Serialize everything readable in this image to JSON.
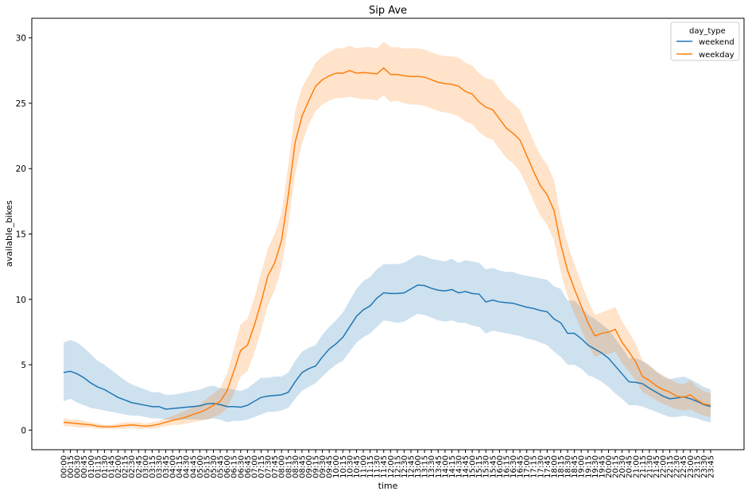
{
  "chart_data": {
    "type": "line",
    "title": "Sip Ave",
    "xlabel": "time",
    "ylabel": "available_bikes",
    "ylim": [
      -1.5,
      31.5
    ],
    "yticks": [
      0,
      5,
      10,
      15,
      20,
      25,
      30
    ],
    "grid": false,
    "legend": {
      "title": "day_type",
      "placement": "top-right"
    },
    "x": [
      "00:00",
      "00:15",
      "00:30",
      "00:45",
      "01:00",
      "01:15",
      "01:30",
      "01:45",
      "02:00",
      "02:15",
      "02:30",
      "02:45",
      "03:00",
      "03:15",
      "03:30",
      "03:45",
      "04:00",
      "04:15",
      "04:30",
      "04:45",
      "05:00",
      "05:15",
      "05:30",
      "05:45",
      "06:00",
      "06:15",
      "06:30",
      "06:45",
      "07:00",
      "07:15",
      "07:30",
      "07:45",
      "08:00",
      "08:15",
      "08:30",
      "08:45",
      "09:00",
      "09:15",
      "09:30",
      "09:45",
      "10:00",
      "10:15",
      "10:30",
      "10:45",
      "11:00",
      "11:15",
      "11:30",
      "11:45",
      "12:00",
      "12:15",
      "12:30",
      "12:45",
      "13:00",
      "13:15",
      "13:30",
      "13:45",
      "14:00",
      "14:15",
      "14:30",
      "14:45",
      "15:00",
      "15:15",
      "15:30",
      "15:45",
      "16:00",
      "16:15",
      "16:30",
      "16:45",
      "17:00",
      "17:15",
      "17:30",
      "17:45",
      "18:00",
      "18:15",
      "18:30",
      "18:45",
      "19:00",
      "19:15",
      "19:30",
      "19:45",
      "20:00",
      "20:15",
      "20:30",
      "20:45",
      "21:00",
      "21:15",
      "21:30",
      "21:45",
      "22:00",
      "22:15",
      "22:30",
      "22:45",
      "23:00",
      "23:15",
      "23:30",
      "23:45"
    ],
    "series": [
      {
        "name": "weekend",
        "color": "#1f77b4",
        "values": [
          4.4,
          4.5,
          4.3,
          4.0,
          3.6,
          3.3,
          3.1,
          2.8,
          2.5,
          2.3,
          2.1,
          2.0,
          1.9,
          1.8,
          1.8,
          1.6,
          1.65,
          1.7,
          1.75,
          1.8,
          1.85,
          2.0,
          2.05,
          1.95,
          1.8,
          1.8,
          1.75,
          1.9,
          2.2,
          2.5,
          2.6,
          2.65,
          2.7,
          2.9,
          3.7,
          4.4,
          4.7,
          4.9,
          5.6,
          6.2,
          6.6,
          7.1,
          7.9,
          8.7,
          9.2,
          9.5,
          10.1,
          10.5,
          10.45,
          10.45,
          10.5,
          10.8,
          11.1,
          11.05,
          10.85,
          10.7,
          10.65,
          10.75,
          10.5,
          10.6,
          10.45,
          10.4,
          9.8,
          9.95,
          9.8,
          9.75,
          9.7,
          9.55,
          9.4,
          9.3,
          9.15,
          9.05,
          8.5,
          8.2,
          7.4,
          7.4,
          7.0,
          6.5,
          6.2,
          5.9,
          5.5,
          4.9,
          4.3,
          3.7,
          3.65,
          3.55,
          3.2,
          2.9,
          2.6,
          2.4,
          2.45,
          2.55,
          2.4,
          2.2,
          1.95,
          1.8
        ],
        "ci_lower": [
          2.2,
          2.4,
          2.1,
          1.9,
          1.7,
          1.6,
          1.5,
          1.4,
          1.3,
          1.2,
          1.1,
          1.1,
          1.0,
          0.9,
          0.9,
          0.8,
          0.8,
          0.8,
          0.8,
          0.8,
          0.8,
          0.8,
          0.9,
          0.8,
          0.6,
          0.7,
          0.7,
          0.8,
          1.0,
          1.2,
          1.4,
          1.4,
          1.5,
          1.7,
          2.4,
          3.0,
          3.3,
          3.6,
          4.1,
          4.6,
          5.0,
          5.3,
          6.0,
          6.7,
          7.1,
          7.4,
          7.9,
          8.4,
          8.3,
          8.2,
          8.3,
          8.6,
          8.9,
          8.8,
          8.6,
          8.4,
          8.3,
          8.4,
          8.2,
          8.2,
          8.0,
          7.9,
          7.4,
          7.6,
          7.5,
          7.4,
          7.3,
          7.2,
          7.0,
          6.9,
          6.7,
          6.5,
          6.0,
          5.6,
          5.0,
          5.0,
          4.7,
          4.2,
          4.0,
          3.7,
          3.3,
          2.8,
          2.4,
          1.9,
          1.9,
          1.8,
          1.6,
          1.4,
          1.2,
          1.0,
          1.0,
          1.1,
          1.0,
          0.9,
          0.7,
          0.6
        ],
        "ci_upper": [
          6.7,
          6.9,
          6.7,
          6.3,
          5.8,
          5.3,
          5.0,
          4.6,
          4.2,
          3.8,
          3.5,
          3.3,
          3.1,
          2.9,
          2.9,
          2.7,
          2.7,
          2.8,
          2.9,
          3.0,
          3.1,
          3.3,
          3.4,
          3.2,
          3.2,
          3.1,
          3.0,
          3.2,
          3.6,
          4.0,
          4.0,
          4.1,
          4.1,
          4.4,
          5.3,
          6.0,
          6.3,
          6.5,
          7.3,
          7.9,
          8.4,
          9.0,
          9.9,
          10.8,
          11.4,
          11.7,
          12.3,
          12.7,
          12.7,
          12.7,
          12.8,
          13.1,
          13.4,
          13.3,
          13.1,
          13.0,
          12.9,
          13.1,
          12.8,
          13.0,
          12.9,
          12.8,
          12.3,
          12.4,
          12.2,
          12.1,
          12.1,
          11.9,
          11.8,
          11.7,
          11.6,
          11.5,
          11.0,
          10.8,
          9.9,
          9.9,
          9.4,
          8.8,
          8.5,
          8.1,
          7.7,
          7.0,
          6.3,
          5.5,
          5.5,
          5.3,
          4.9,
          4.5,
          4.1,
          3.9,
          4.0,
          4.1,
          3.9,
          3.6,
          3.3,
          3.1
        ]
      },
      {
        "name": "weekday",
        "color": "#ff7f0e",
        "values": [
          0.6,
          0.55,
          0.5,
          0.45,
          0.4,
          0.3,
          0.25,
          0.25,
          0.3,
          0.35,
          0.4,
          0.35,
          0.3,
          0.35,
          0.45,
          0.6,
          0.75,
          0.85,
          1.0,
          1.2,
          1.35,
          1.6,
          1.9,
          2.2,
          3.0,
          4.5,
          6.1,
          6.5,
          8.0,
          9.8,
          11.8,
          12.8,
          14.5,
          18.0,
          22.0,
          24.0,
          25.2,
          26.3,
          26.8,
          27.1,
          27.3,
          27.3,
          27.5,
          27.3,
          27.35,
          27.3,
          27.25,
          27.7,
          27.2,
          27.2,
          27.1,
          27.05,
          27.05,
          27.0,
          26.8,
          26.6,
          26.5,
          26.45,
          26.3,
          25.9,
          25.7,
          25.1,
          24.7,
          24.5,
          23.8,
          23.1,
          22.7,
          22.2,
          21.0,
          19.8,
          18.7,
          18.0,
          16.8,
          14.2,
          12.2,
          10.8,
          9.5,
          8.2,
          7.2,
          7.4,
          7.5,
          7.7,
          6.7,
          6.0,
          5.2,
          4.1,
          3.8,
          3.4,
          3.1,
          2.9,
          2.6,
          2.5,
          2.7,
          2.3,
          2.0,
          1.9
        ],
        "ci_lower": [
          0.3,
          0.3,
          0.2,
          0.2,
          0.2,
          0.1,
          0.1,
          0.1,
          0.1,
          0.1,
          0.2,
          0.1,
          0.1,
          0.1,
          0.2,
          0.3,
          0.4,
          0.4,
          0.5,
          0.6,
          0.7,
          0.8,
          1.0,
          1.2,
          1.7,
          2.8,
          4.1,
          4.5,
          5.9,
          7.6,
          9.6,
          10.7,
          12.4,
          15.7,
          19.6,
          21.9,
          23.4,
          24.4,
          24.9,
          25.2,
          25.4,
          25.4,
          25.5,
          25.4,
          25.3,
          25.3,
          25.2,
          25.6,
          25.1,
          25.2,
          25.0,
          24.9,
          24.9,
          24.8,
          24.6,
          24.4,
          24.3,
          24.2,
          24.0,
          23.6,
          23.4,
          22.8,
          22.4,
          22.2,
          21.5,
          20.8,
          20.4,
          19.8,
          18.7,
          17.5,
          16.4,
          15.7,
          14.5,
          12.1,
          10.2,
          8.9,
          7.7,
          6.5,
          5.6,
          5.8,
          5.8,
          6.0,
          5.1,
          4.5,
          3.8,
          2.9,
          2.6,
          2.3,
          2.0,
          1.8,
          1.6,
          1.5,
          1.6,
          1.3,
          1.1,
          1.0
        ],
        "ci_upper": [
          0.9,
          0.8,
          0.8,
          0.7,
          0.6,
          0.5,
          0.4,
          0.4,
          0.5,
          0.6,
          0.6,
          0.6,
          0.5,
          0.6,
          0.7,
          0.9,
          1.1,
          1.3,
          1.5,
          1.8,
          2.0,
          2.4,
          2.8,
          3.2,
          4.3,
          6.2,
          8.1,
          8.5,
          10.1,
          12.0,
          13.9,
          15.0,
          16.6,
          20.3,
          24.4,
          26.2,
          27.1,
          28.1,
          28.6,
          28.9,
          29.2,
          29.2,
          29.4,
          29.2,
          29.3,
          29.3,
          29.2,
          29.7,
          29.3,
          29.3,
          29.2,
          29.2,
          29.2,
          29.1,
          28.9,
          28.7,
          28.6,
          28.6,
          28.5,
          28.1,
          27.9,
          27.3,
          26.9,
          26.8,
          26.1,
          25.4,
          25.0,
          24.5,
          23.3,
          22.1,
          21.0,
          20.3,
          19.1,
          16.3,
          14.2,
          12.7,
          11.3,
          9.9,
          8.8,
          9.0,
          9.2,
          9.4,
          8.3,
          7.5,
          6.6,
          5.3,
          5.0,
          4.5,
          4.2,
          3.9,
          3.6,
          3.5,
          3.8,
          3.3,
          3.0,
          2.8
        ]
      }
    ]
  }
}
